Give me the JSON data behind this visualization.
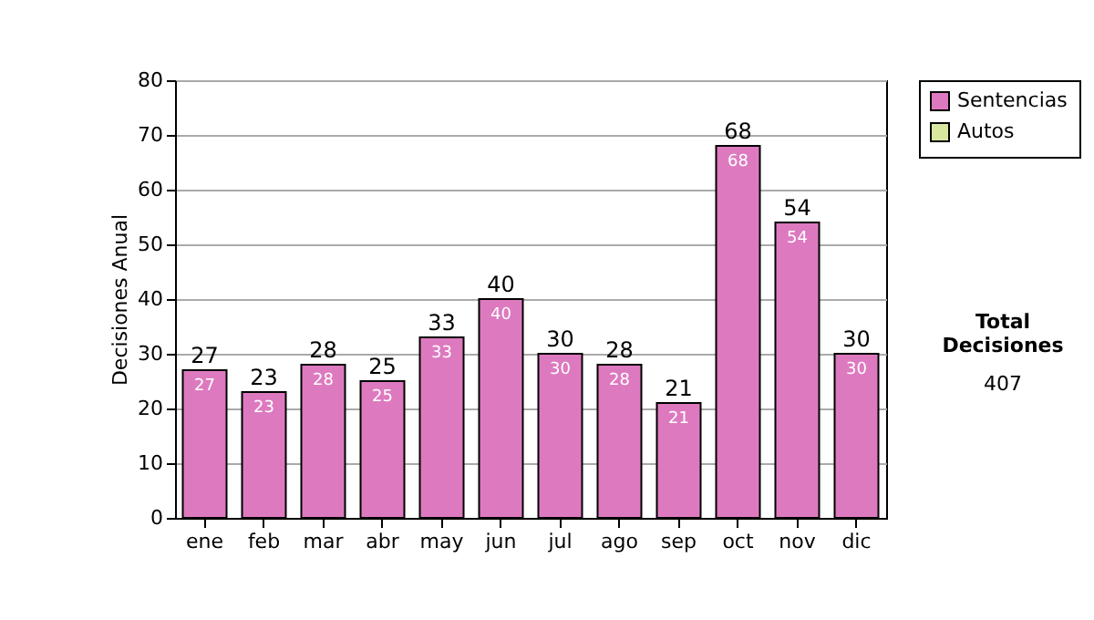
{
  "chart_data": {
    "type": "bar",
    "ylabel": "Decisiones Anual",
    "categories": [
      "ene",
      "feb",
      "mar",
      "abr",
      "may",
      "jun",
      "jul",
      "ago",
      "sep",
      "oct",
      "nov",
      "dic"
    ],
    "series": [
      {
        "name": "Sentencias",
        "color": "#dd7abf",
        "values": [
          27,
          23,
          28,
          25,
          33,
          40,
          30,
          28,
          21,
          68,
          54,
          30
        ],
        "value_labels": [
          "27",
          "23",
          "28",
          "25",
          "33",
          "40",
          "30",
          "28",
          "21",
          "68",
          "54",
          "30"
        ]
      },
      {
        "name": "Autos",
        "color": "#d8e8a0",
        "values": [
          null,
          null,
          null,
          null,
          null,
          null,
          null,
          null,
          null,
          null,
          null,
          null
        ]
      }
    ],
    "stacked": true,
    "totals": [
      "27",
      "23",
      "28",
      "25",
      "33",
      "40",
      "30",
      "28",
      "21",
      "68",
      "54",
      "30"
    ],
    "ylim": [
      0,
      80
    ],
    "yticks": [
      0,
      10,
      20,
      30,
      40,
      50,
      60,
      70,
      80
    ],
    "grid": "y",
    "legend": "right",
    "annotations": [
      "Total Decisiones",
      "407"
    ]
  }
}
